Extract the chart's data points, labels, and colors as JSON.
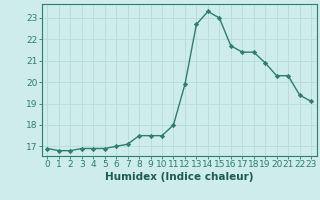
{
  "x": [
    0,
    1,
    2,
    3,
    4,
    5,
    6,
    7,
    8,
    9,
    10,
    11,
    12,
    13,
    14,
    15,
    16,
    17,
    18,
    19,
    20,
    21,
    22,
    23
  ],
  "y": [
    16.9,
    16.8,
    16.8,
    16.9,
    16.9,
    16.9,
    17.0,
    17.1,
    17.5,
    17.5,
    17.5,
    18.0,
    19.9,
    22.7,
    23.3,
    23.0,
    21.7,
    21.4,
    21.4,
    20.9,
    20.3,
    20.3,
    19.4,
    19.1
  ],
  "line_color": "#2e7d6e",
  "marker": "D",
  "marker_size": 2.2,
  "bg_color": "#ceecea",
  "grid_color": "#b8dbd8",
  "xlabel": "Humidex (Indice chaleur)",
  "ylabel_ticks": [
    17,
    18,
    19,
    20,
    21,
    22,
    23
  ],
  "xlabel_ticks": [
    0,
    1,
    2,
    3,
    4,
    5,
    6,
    7,
    8,
    9,
    10,
    11,
    12,
    13,
    14,
    15,
    16,
    17,
    18,
    19,
    20,
    21,
    22,
    23
  ],
  "xlim": [
    -0.5,
    23.5
  ],
  "ylim": [
    16.55,
    23.65
  ],
  "tick_color": "#2e7d6e",
  "tick_fontsize": 6.5,
  "xlabel_fontsize": 7.5,
  "label_color": "#1a5c50",
  "spine_color": "#2e7d6e",
  "linewidth": 1.0
}
